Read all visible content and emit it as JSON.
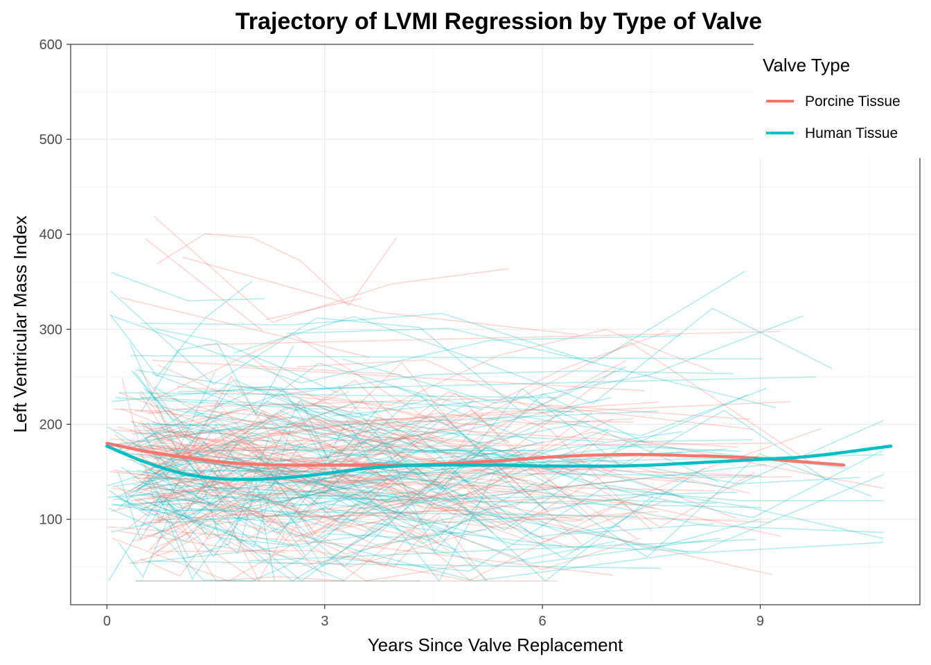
{
  "chart_data": {
    "type": "line",
    "title": "Trajectory of LVMI Regression by Type of Valve",
    "xlabel": "Years Since Valve Replacement",
    "ylabel": "Left Ventricular Mass Index",
    "xlim": [
      -0.5,
      11.2
    ],
    "ylim": [
      10,
      600
    ],
    "x_ticks": [
      0,
      3,
      6,
      9
    ],
    "x_tick_labels": [
      "0",
      "3",
      "6",
      "9"
    ],
    "y_ticks": [
      100,
      200,
      300,
      400,
      500,
      600
    ],
    "y_tick_labels": [
      "100",
      "200",
      "300",
      "400",
      "500",
      "600"
    ],
    "grid": true,
    "legend": {
      "title": "Valve Type",
      "placement": "top-right",
      "entries": [
        {
          "label": "Porcine Tissue",
          "color": "#F8766D"
        },
        {
          "label": "Human Tissue",
          "color": "#00BFC4"
        }
      ]
    },
    "series": [
      {
        "name": "Porcine Tissue",
        "color": "#F8766D",
        "x": [
          0.0,
          0.5,
          1.0,
          1.5,
          2.0,
          2.5,
          3.0,
          3.5,
          4.0,
          4.5,
          5.0,
          5.5,
          6.0,
          6.5,
          7.0,
          7.5,
          8.0,
          8.5,
          9.0,
          9.5,
          10.15
        ],
        "y": [
          180,
          172,
          166,
          161,
          158,
          157,
          157,
          157,
          157,
          158,
          160,
          162,
          165,
          167,
          168,
          168,
          167,
          166,
          164,
          161,
          157
        ]
      },
      {
        "name": "Human Tissue",
        "color": "#00BFC4",
        "x": [
          0.0,
          0.5,
          1.0,
          1.5,
          2.0,
          2.5,
          3.0,
          3.5,
          4.0,
          4.5,
          5.0,
          5.5,
          6.0,
          6.5,
          7.0,
          7.5,
          8.0,
          8.5,
          9.0,
          9.5,
          10.0,
          10.5,
          10.8
        ],
        "y": [
          177,
          161,
          149,
          143,
          142,
          144,
          148,
          153,
          156,
          157,
          157,
          157,
          156,
          156,
          156,
          157,
          159,
          161,
          163,
          165,
          169,
          174,
          177
        ]
      }
    ]
  }
}
